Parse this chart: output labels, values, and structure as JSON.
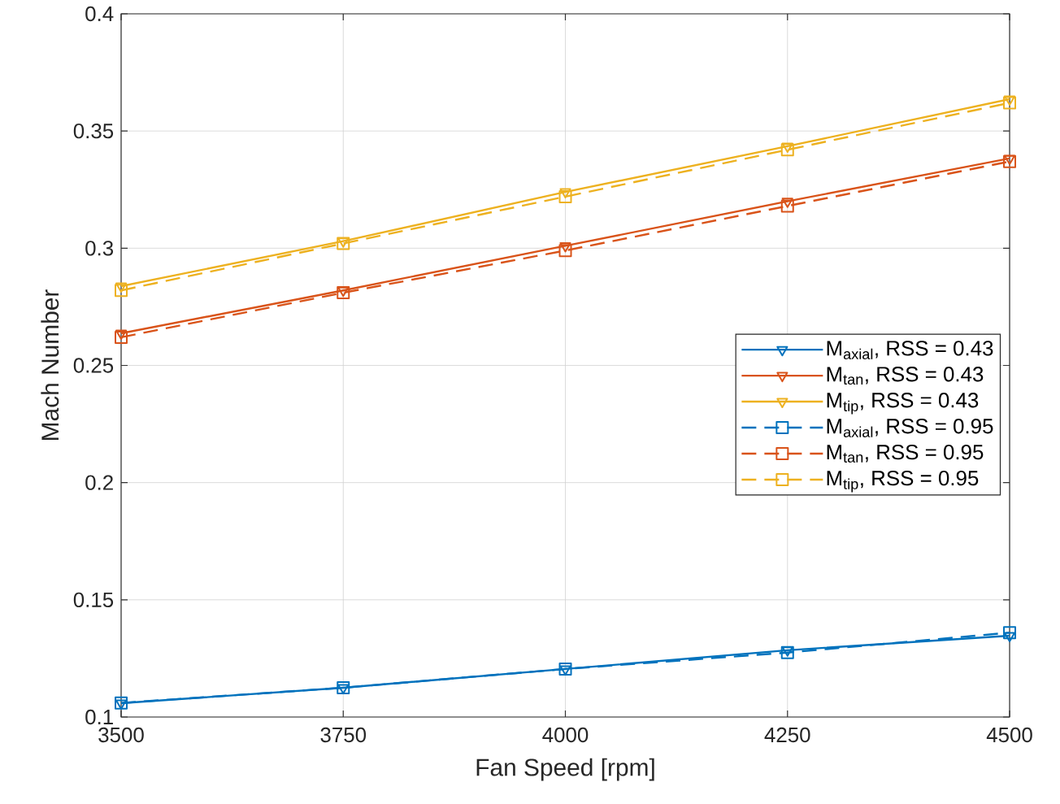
{
  "chart_data": {
    "type": "line",
    "xlabel": "Fan Speed [rpm]",
    "ylabel": "Mach Number",
    "x": [
      3500,
      3750,
      4000,
      4250,
      4500
    ],
    "xlim": [
      3500,
      4500
    ],
    "xticks": [
      3500,
      3750,
      4000,
      4250,
      4500
    ],
    "ylim": [
      0.1,
      0.4
    ],
    "yticks": [
      0.1,
      0.15,
      0.2,
      0.25,
      0.3,
      0.35,
      0.4
    ],
    "grid": true,
    "legend": "right",
    "series": [
      {
        "name": "M$_{axial}$, RSS = 0.43",
        "color": "#0072bd",
        "marker": "triangle",
        "line_style": "solid",
        "values": [
          0.1059,
          0.1125,
          0.1205,
          0.1285,
          0.1347
        ]
      },
      {
        "name": "M$_{tan}$, RSS = 0.43",
        "color": "#d95319",
        "marker": "triangle",
        "line_style": "solid",
        "values": [
          0.2637,
          0.282,
          0.301,
          0.32,
          0.3383
        ]
      },
      {
        "name": "M$_{tip}$, RSS = 0.43",
        "color": "#edb120",
        "marker": "triangle",
        "line_style": "solid",
        "values": [
          0.2838,
          0.303,
          0.324,
          0.3435,
          0.3636
        ]
      },
      {
        "name": "M$_{axial}$, RSS = 0.95",
        "color": "#0072bd",
        "marker": "square",
        "line_style": "dashed",
        "values": [
          0.106,
          0.1125,
          0.1205,
          0.1275,
          0.136
        ]
      },
      {
        "name": "M$_{tan}$, RSS = 0.95",
        "color": "#d95319",
        "marker": "square",
        "line_style": "dashed",
        "values": [
          0.262,
          0.281,
          0.299,
          0.318,
          0.337
        ]
      },
      {
        "name": "M$_{tip}$, RSS = 0.95",
        "color": "#edb120",
        "marker": "square",
        "line_style": "dashed",
        "values": [
          0.282,
          0.302,
          0.322,
          0.342,
          0.362
        ]
      }
    ]
  }
}
